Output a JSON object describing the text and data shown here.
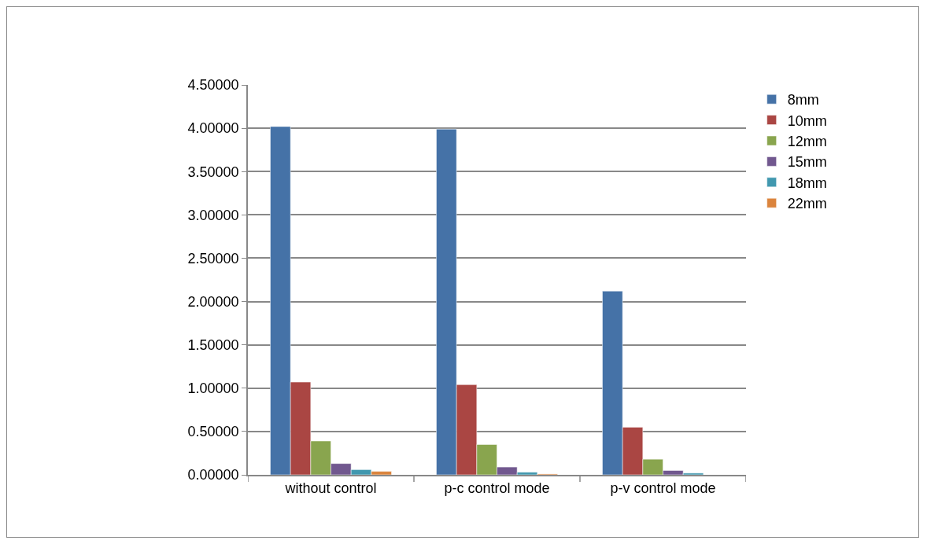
{
  "chart_data": {
    "type": "bar",
    "categories": [
      "without control",
      "p-c control mode",
      "p-v control mode"
    ],
    "series": [
      {
        "name": "8mm",
        "color": "#4572a7",
        "values": [
          4.02,
          3.99,
          2.12
        ]
      },
      {
        "name": "10mm",
        "color": "#aa4643",
        "values": [
          1.07,
          1.04,
          0.55
        ]
      },
      {
        "name": "12mm",
        "color": "#89a54e",
        "values": [
          0.39,
          0.35,
          0.18
        ]
      },
      {
        "name": "15mm",
        "color": "#71588f",
        "values": [
          0.13,
          0.09,
          0.05
        ]
      },
      {
        "name": "18mm",
        "color": "#4198af",
        "values": [
          0.06,
          0.03,
          0.02
        ]
      },
      {
        "name": "22mm",
        "color": "#db843d",
        "values": [
          0.04,
          0.01,
          null
        ]
      }
    ],
    "ylim": [
      0,
      4.5
    ],
    "yticks": [
      {
        "value": 0,
        "label": "0.00000"
      },
      {
        "value": 0.5,
        "label": "0.50000"
      },
      {
        "value": 1,
        "label": "1.00000"
      },
      {
        "value": 1.5,
        "label": "1.50000"
      },
      {
        "value": 2,
        "label": "2.00000"
      },
      {
        "value": 2.5,
        "label": "2.50000"
      },
      {
        "value": 3,
        "label": "3.00000"
      },
      {
        "value": 3.5,
        "label": "3.50000"
      },
      {
        "value": 4,
        "label": "4.00000"
      },
      {
        "value": 4.5,
        "label": "4.50000"
      }
    ],
    "grid": "y",
    "legend": "right"
  }
}
